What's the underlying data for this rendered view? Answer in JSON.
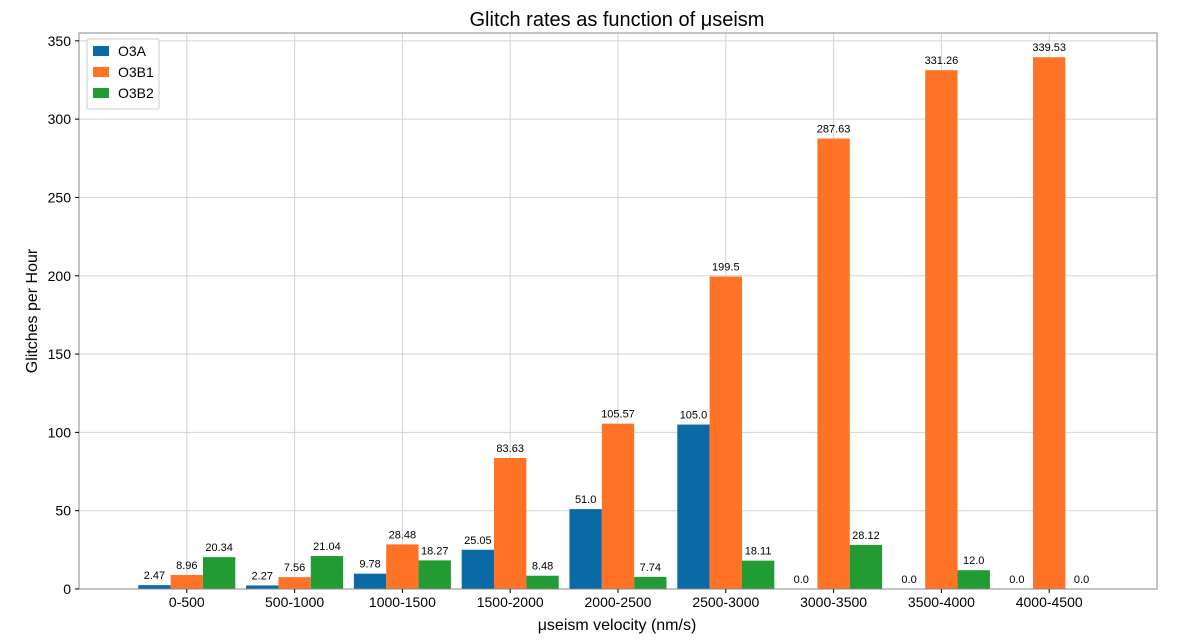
{
  "chart_data": {
    "type": "bar",
    "title": "Glitch rates as function of μseism",
    "xlabel": "μseism velocity (nm/s)",
    "ylabel": "Glitches per Hour",
    "ylim": [
      0,
      355
    ],
    "yticks": [
      0,
      50,
      100,
      150,
      200,
      250,
      300,
      350
    ],
    "grid": true,
    "legend_position": "top-left",
    "categories": [
      "0-500",
      "500-1000",
      "1000-1500",
      "1500-2000",
      "2000-2500",
      "2500-3000",
      "3000-3500",
      "3500-4000",
      "4000-4500"
    ],
    "series": [
      {
        "name": "O3A",
        "color": "#0b6aa6",
        "values": [
          2.47,
          2.27,
          9.78,
          25.05,
          51.0,
          105.0,
          0.0,
          0.0,
          0.0
        ],
        "labels": [
          "2.47",
          "2.27",
          "9.78",
          "25.05",
          "51.0",
          "105.0",
          "0.0",
          "0.0",
          "0.0"
        ]
      },
      {
        "name": "O3B1",
        "color": "#fe7326",
        "values": [
          8.96,
          7.56,
          28.48,
          83.63,
          105.57,
          199.5,
          287.63,
          331.26,
          339.53
        ],
        "labels": [
          "8.96",
          "7.56",
          "28.48",
          "83.63",
          "105.57",
          "199.5",
          "287.63",
          "331.26",
          "339.53"
        ]
      },
      {
        "name": "O3B2",
        "color": "#239b33",
        "values": [
          20.34,
          21.04,
          18.27,
          8.48,
          7.74,
          18.11,
          28.12,
          12.0,
          0.0
        ],
        "labels": [
          "20.34",
          "21.04",
          "18.27",
          "8.48",
          "7.74",
          "18.11",
          "28.12",
          "12.0",
          "0.0"
        ]
      }
    ]
  }
}
